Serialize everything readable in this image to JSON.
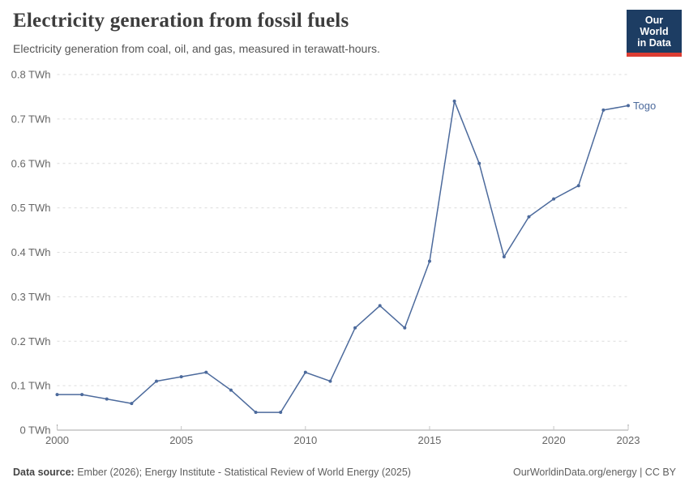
{
  "header": {
    "title": "Electricity generation from fossil fuels",
    "subtitle": "Electricity generation from coal, oil, and gas, measured in terawatt-hours.",
    "logo": {
      "line1": "Our World",
      "line2": "in Data",
      "bg_color": "#1d3d63",
      "bar_color": "#dc3d33"
    }
  },
  "chart_data": {
    "type": "line",
    "title": "Electricity generation from fossil fuels",
    "subtitle": "Electricity generation from coal, oil, and gas, measured in terawatt-hours.",
    "unit": "TWh",
    "xlim": [
      2000,
      2023
    ],
    "ylim": [
      0,
      0.8
    ],
    "grid": "dashed-horizontal",
    "legend_position": "end-of-line-label",
    "x": [
      2000,
      2001,
      2002,
      2003,
      2004,
      2005,
      2006,
      2007,
      2008,
      2009,
      2010,
      2011,
      2012,
      2013,
      2014,
      2015,
      2016,
      2017,
      2018,
      2019,
      2020,
      2021,
      2022,
      2023
    ],
    "series": [
      {
        "name": "Togo",
        "color": "#4c6a9c",
        "values": [
          0.08,
          0.08,
          0.07,
          0.06,
          0.11,
          0.12,
          0.13,
          0.09,
          0.04,
          0.04,
          0.13,
          0.11,
          0.23,
          0.28,
          0.23,
          0.38,
          0.74,
          0.6,
          0.39,
          0.48,
          0.52,
          0.55,
          0.72,
          0.73
        ]
      }
    ],
    "x_ticks": [
      2000,
      2005,
      2010,
      2015,
      2020,
      2023
    ],
    "x_tick_labels": [
      "2000",
      "2005",
      "2010",
      "2015",
      "2020",
      "2023"
    ],
    "y_ticks": [
      0,
      0.1,
      0.2,
      0.3,
      0.4,
      0.5,
      0.6,
      0.7,
      0.8
    ],
    "y_tick_labels": [
      "0 TWh",
      "0.1 TWh",
      "0.2 TWh",
      "0.3 TWh",
      "0.4 TWh",
      "0.5 TWh",
      "0.6 TWh",
      "0.7 TWh",
      "0.8 TWh"
    ]
  },
  "colors": {
    "line": "#4c6a9c",
    "grid": "#dcdcdc",
    "axis": "#a5a5a5",
    "tick_label": "#666666",
    "title": "#3d3d3d",
    "subtitle": "#555555"
  },
  "footer": {
    "source_label": "Data source:",
    "source_text": " Ember (2026); Energy Institute - Statistical Review of World Energy (2025)",
    "credit": "OurWorldinData.org/energy | CC BY"
  }
}
